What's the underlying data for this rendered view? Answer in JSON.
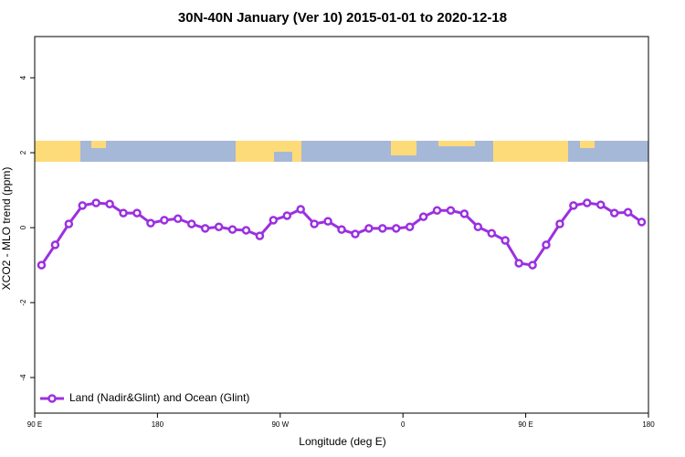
{
  "chart_data": {
    "type": "line",
    "title": "30N-40N January (Ver 10)   2015-01-01 to 2020-12-18",
    "xlabel": "Longitude (deg E)",
    "ylabel": "XCO2 - MLO trend (ppm)",
    "x": [
      95,
      105,
      115,
      125,
      135,
      145,
      155,
      165,
      175,
      185,
      195,
      205,
      215,
      225,
      235,
      245,
      255,
      265,
      275,
      285,
      295,
      305,
      315,
      325,
      335,
      345,
      355,
      365,
      375,
      385,
      395,
      405,
      415,
      425,
      435,
      445,
      455,
      465,
      475,
      485,
      495,
      505,
      515,
      525,
      535
    ],
    "series": [
      {
        "name": "Land (Nadir&Glint) and Ocean (Glint)",
        "color": "#9b30e0",
        "values": [
          -1.0,
          -0.46,
          0.1,
          0.59,
          0.66,
          0.63,
          0.39,
          0.39,
          0.12,
          0.2,
          0.24,
          0.1,
          -0.02,
          0.02,
          -0.05,
          -0.07,
          -0.22,
          0.2,
          0.32,
          0.49,
          0.1,
          0.17,
          -0.05,
          -0.17,
          -0.02,
          -0.02,
          -0.02,
          0.02,
          0.29,
          0.46,
          0.46,
          0.37,
          0.02,
          -0.15,
          -0.34,
          -0.95,
          -1.0,
          -0.46,
          0.1,
          0.59,
          0.66,
          0.61,
          0.39,
          0.41,
          0.15
        ]
      }
    ],
    "xlim": [
      90,
      540
    ],
    "xticks": [
      {
        "value": 90,
        "label": "90 E"
      },
      180,
      {
        "value": 270,
        "label": "90 W"
      },
      {
        "value": 360,
        "label": "0"
      },
      {
        "value": 450,
        "label": "90 E"
      },
      {
        "value": 540,
        "label": "180"
      }
    ],
    "ylim": [
      -4.95,
      5.1
    ],
    "yticks": [
      -4,
      -2,
      0,
      2,
      4
    ],
    "legend": "bottom-left"
  }
}
